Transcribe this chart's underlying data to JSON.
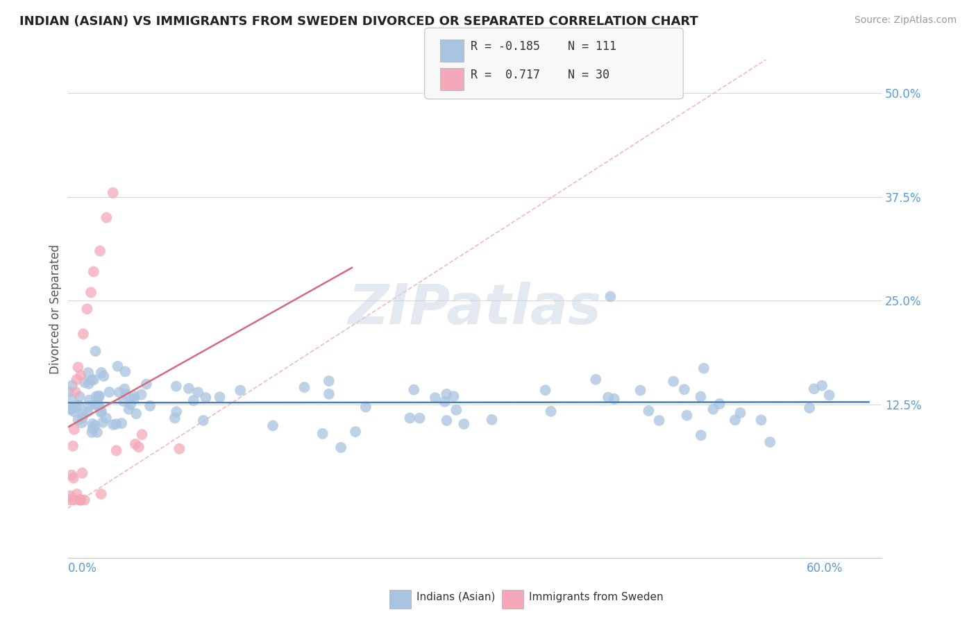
{
  "title": "INDIAN (ASIAN) VS IMMIGRANTS FROM SWEDEN DIVORCED OR SEPARATED CORRELATION CHART",
  "source": "Source: ZipAtlas.com",
  "ylabel": "Divorced or Separated",
  "yticks": [
    "12.5%",
    "25.0%",
    "37.5%",
    "50.0%"
  ],
  "ytick_vals": [
    0.125,
    0.25,
    0.375,
    0.5
  ],
  "legend_r_blue": "-0.185",
  "legend_n_blue": "111",
  "legend_r_pink": "0.717",
  "legend_n_pink": "30",
  "blue_color": "#a8c4e0",
  "pink_color": "#f4a8b8",
  "blue_line_color": "#4a7fb5",
  "pink_line_color": "#d9687a",
  "diag_color": "#f0b0b8",
  "background_color": "#ffffff",
  "watermark": "ZIPatlas",
  "title_fontsize": 13,
  "xlim": [
    0.0,
    0.63
  ],
  "ylim": [
    -0.06,
    0.54
  ]
}
